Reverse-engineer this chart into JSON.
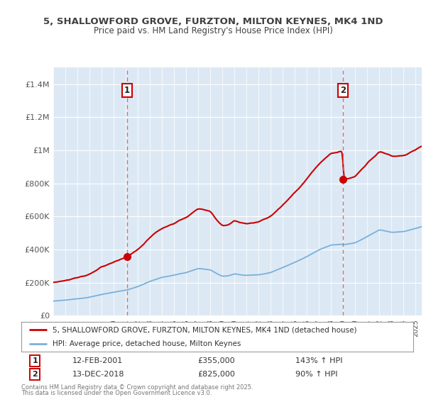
{
  "title_line1": "5, SHALLOWFORD GROVE, FURZTON, MILTON KEYNES, MK4 1ND",
  "title_line2": "Price paid vs. HM Land Registry's House Price Index (HPI)",
  "ytick_values": [
    0,
    200000,
    400000,
    600000,
    800000,
    1000000,
    1200000,
    1400000
  ],
  "ylim": [
    0,
    1500000
  ],
  "xlim_start": 1995.0,
  "xlim_end": 2025.5,
  "background_color": "#dce9f5",
  "grid_color": "#ffffff",
  "sale1_date": 2001.12,
  "sale1_price": 355000,
  "sale2_date": 2018.96,
  "sale2_price": 825000,
  "legend_line1": "5, SHALLOWFORD GROVE, FURZTON, MILTON KEYNES, MK4 1ND (detached house)",
  "legend_line2": "HPI: Average price, detached house, Milton Keynes",
  "footer1": "Contains HM Land Registry data © Crown copyright and database right 2025.",
  "footer2": "This data is licensed under the Open Government Licence v3.0.",
  "annot1_date": "12-FEB-2001",
  "annot1_price": "£355,000",
  "annot1_hpi": "143% ↑ HPI",
  "annot2_date": "13-DEC-2018",
  "annot2_price": "£825,000",
  "annot2_hpi": "90% ↑ HPI",
  "hpi_color": "#7ab0d8",
  "price_color": "#cc0000",
  "dashed_line_color": "#e06060",
  "box_edge_color": "#cc0000",
  "title_color": "#404040",
  "tick_color": "#555555"
}
